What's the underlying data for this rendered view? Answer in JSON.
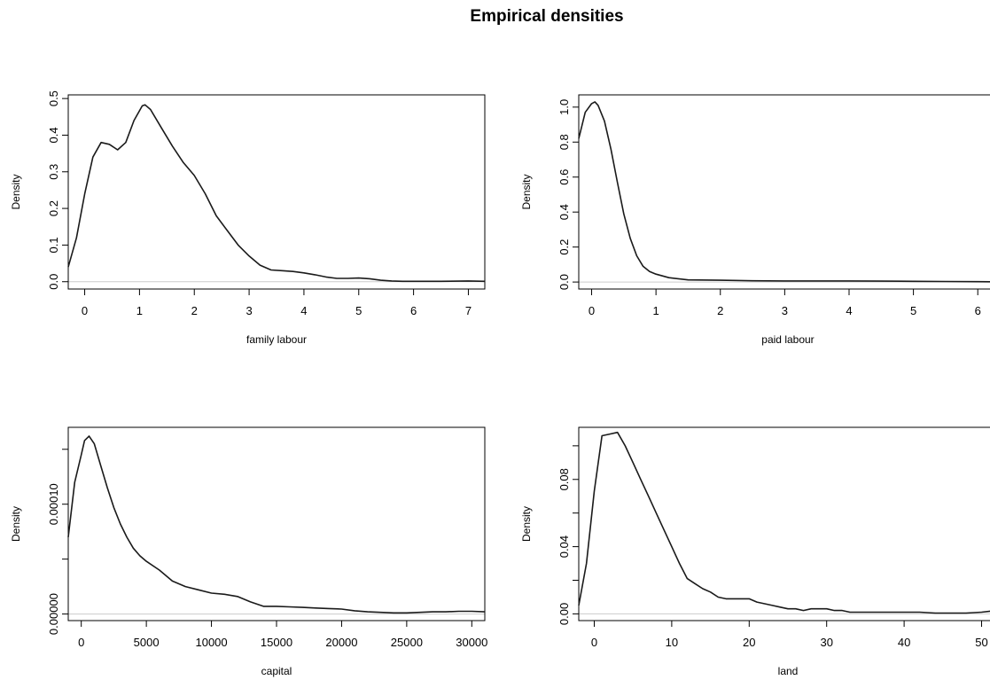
{
  "title": "Empirical densities",
  "chart_data": [
    {
      "type": "line",
      "xlabel": "family labour",
      "ylabel": "Density",
      "xlim": [
        -0.3,
        7.3
      ],
      "ylim": [
        -0.02,
        0.51
      ],
      "xticks": [
        0,
        1,
        2,
        3,
        4,
        5,
        6,
        7
      ],
      "xtick_labels": [
        "0",
        "1",
        "2",
        "3",
        "4",
        "5",
        "6",
        "7"
      ],
      "yticks": [
        0.0,
        0.1,
        0.2,
        0.3,
        0.4,
        0.5
      ],
      "ytick_labels": [
        "0.0",
        "0.1",
        "0.2",
        "0.3",
        "0.4",
        "0.5"
      ],
      "grid": false,
      "x": [
        -0.3,
        -0.15,
        0.0,
        0.15,
        0.3,
        0.45,
        0.6,
        0.75,
        0.9,
        1.05,
        1.1,
        1.2,
        1.4,
        1.6,
        1.8,
        2.0,
        2.2,
        2.4,
        2.6,
        2.8,
        3.0,
        3.2,
        3.4,
        3.6,
        3.8,
        4.0,
        4.2,
        4.4,
        4.6,
        4.8,
        5.0,
        5.2,
        5.4,
        5.6,
        5.8,
        6.0,
        6.5,
        7.0,
        7.3
      ],
      "y": [
        0.04,
        0.12,
        0.24,
        0.34,
        0.38,
        0.375,
        0.36,
        0.38,
        0.44,
        0.48,
        0.483,
        0.47,
        0.42,
        0.37,
        0.325,
        0.29,
        0.24,
        0.18,
        0.14,
        0.1,
        0.07,
        0.045,
        0.032,
        0.03,
        0.028,
        0.024,
        0.019,
        0.013,
        0.009,
        0.009,
        0.01,
        0.008,
        0.004,
        0.002,
        0.001,
        0.001,
        0.001,
        0.002,
        0.001
      ]
    },
    {
      "type": "line",
      "xlabel": "paid labour",
      "ylabel": "Density",
      "xlim": [
        -0.2,
        6.3
      ],
      "ylim": [
        -0.04,
        1.07
      ],
      "xticks": [
        0,
        1,
        2,
        3,
        4,
        5,
        6
      ],
      "xtick_labels": [
        "0",
        "1",
        "2",
        "3",
        "4",
        "5",
        "6"
      ],
      "yticks": [
        0.0,
        0.2,
        0.4,
        0.6,
        0.8,
        1.0
      ],
      "ytick_labels": [
        "0.0",
        "0.2",
        "0.4",
        "0.6",
        "0.8",
        "1.0"
      ],
      "grid": false,
      "x": [
        -0.2,
        -0.1,
        0.0,
        0.05,
        0.1,
        0.2,
        0.3,
        0.4,
        0.5,
        0.6,
        0.7,
        0.8,
        0.9,
        1.0,
        1.2,
        1.5,
        2.0,
        2.5,
        3.0,
        3.5,
        4.0,
        4.5,
        5.0,
        5.5,
        6.0,
        6.3
      ],
      "y": [
        0.82,
        0.97,
        1.02,
        1.03,
        1.01,
        0.92,
        0.76,
        0.57,
        0.39,
        0.25,
        0.15,
        0.09,
        0.06,
        0.045,
        0.025,
        0.012,
        0.01,
        0.007,
        0.006,
        0.006,
        0.006,
        0.005,
        0.004,
        0.003,
        0.002,
        0.001
      ]
    },
    {
      "type": "line",
      "xlabel": "capital",
      "ylabel": "Density",
      "xlim": [
        -1000,
        31000
      ],
      "ylim": [
        -6e-06,
        0.00017
      ],
      "xticks": [
        0,
        5000,
        10000,
        15000,
        20000,
        25000,
        30000
      ],
      "xtick_labels": [
        "0",
        "5000",
        "10000",
        "15000",
        "20000",
        "25000",
        "30000"
      ],
      "yticks": [
        0.0,
        5e-05,
        0.0001,
        0.00015
      ],
      "ytick_labels": [
        "0.00000",
        "",
        "0.00010",
        ""
      ],
      "grid": false,
      "x": [
        -1000,
        -500,
        0,
        250,
        600,
        1000,
        1500,
        2000,
        2500,
        3000,
        3500,
        4000,
        4500,
        5000,
        6000,
        7000,
        8000,
        9000,
        10000,
        11000,
        12000,
        13000,
        14000,
        15000,
        16000,
        17000,
        18000,
        19000,
        20000,
        21000,
        22000,
        23000,
        24000,
        25000,
        26000,
        27000,
        28000,
        29000,
        30000,
        31000
      ],
      "y": [
        7e-05,
        0.00012,
        0.000145,
        0.000158,
        0.000162,
        0.000155,
        0.000135,
        0.000115,
        9.7e-05,
        8.2e-05,
        7e-05,
        6e-05,
        5.3e-05,
        4.8e-05,
        4e-05,
        3e-05,
        2.5e-05,
        2.2e-05,
        1.9e-05,
        1.8e-05,
        1.6e-05,
        1.1e-05,
        7e-06,
        7e-06,
        6.5e-06,
        6e-06,
        5.5e-06,
        5e-06,
        4.5e-06,
        3e-06,
        2e-06,
        1.5e-06,
        1e-06,
        1e-06,
        1.5e-06,
        2e-06,
        2e-06,
        2.5e-06,
        2.5e-06,
        2e-06
      ]
    },
    {
      "type": "line",
      "xlabel": "land",
      "ylabel": "Density",
      "xlim": [
        -2,
        52
      ],
      "ylim": [
        -0.004,
        0.111
      ],
      "xticks": [
        0,
        10,
        20,
        30,
        40,
        50
      ],
      "xtick_labels": [
        "0",
        "10",
        "20",
        "30",
        "40",
        "50"
      ],
      "yticks": [
        0.0,
        0.02,
        0.04,
        0.06,
        0.08,
        0.1
      ],
      "ytick_labels": [
        "0.00",
        "",
        "0.04",
        "",
        "0.08",
        ""
      ],
      "grid": false,
      "x": [
        -2,
        -1,
        0,
        1,
        2,
        3,
        4,
        5,
        6,
        7,
        8,
        9,
        10,
        11,
        12,
        13,
        14,
        15,
        16,
        17,
        18,
        19,
        20,
        21,
        22,
        23,
        24,
        25,
        26,
        27,
        28,
        29,
        30,
        31,
        32,
        33,
        34,
        35,
        36,
        38,
        40,
        42,
        44,
        46,
        48,
        50,
        52
      ],
      "y": [
        0.005,
        0.03,
        0.073,
        0.106,
        0.107,
        0.108,
        0.1,
        0.09,
        0.08,
        0.07,
        0.06,
        0.05,
        0.04,
        0.03,
        0.021,
        0.018,
        0.015,
        0.013,
        0.01,
        0.009,
        0.009,
        0.009,
        0.009,
        0.007,
        0.006,
        0.005,
        0.004,
        0.003,
        0.003,
        0.002,
        0.003,
        0.003,
        0.003,
        0.002,
        0.002,
        0.001,
        0.001,
        0.001,
        0.001,
        0.001,
        0.001,
        0.001,
        0.0005,
        0.0005,
        0.0005,
        0.001,
        0.002
      ]
    }
  ]
}
